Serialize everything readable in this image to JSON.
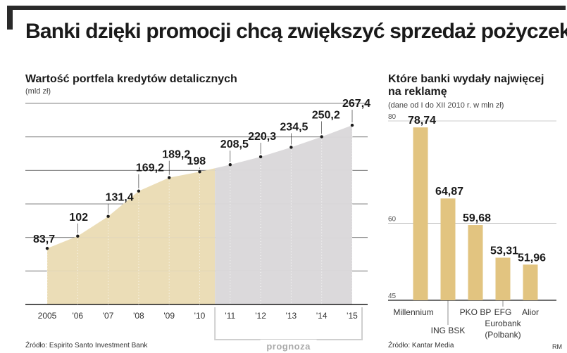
{
  "headline": "Banki dzięki promocji chcą zwiększyć sprzedaż pożyczek",
  "colors": {
    "area_actual": "#e9d9af",
    "area_forecast": "#d8d6d8",
    "bar": "#e2c480",
    "grid": "#333333",
    "dot": "#1a1a1a"
  },
  "chart_data": [
    {
      "type": "area",
      "title": "Wartość portfela kredytów detalicznych",
      "subtitle": "(mld zł)",
      "categories": [
        "2005",
        "'06",
        "'07",
        "'08",
        "'09",
        "'10",
        "'11",
        "'12",
        "'13",
        "'14",
        "'15"
      ],
      "values": [
        83.7,
        102,
        131.4,
        169.2,
        189.2,
        198,
        208.5,
        220.3,
        234.5,
        250.2,
        267.4
      ],
      "value_labels": [
        "83,7",
        "102",
        "131,4",
        "169,2",
        "189,2",
        "198",
        "208,5",
        "220,3",
        "234,5",
        "250,2",
        "267,4"
      ],
      "forecast_from": "'11",
      "forecast_label": "prognoza",
      "ylim": [
        0,
        300
      ],
      "source": "Źródło: Espirito Santo Investment Bank"
    },
    {
      "type": "bar",
      "title": "Które banki wydały najwięcej na reklamę",
      "subtitle": "(dane od I do XII 2010 r. w mln zł)",
      "categories": [
        "Millennium",
        "ING BSK",
        "PKO BP",
        "EFG Eurobank (Polbank)",
        "Alior"
      ],
      "category_lines": [
        [
          "Millennium"
        ],
        [
          "ING BSK"
        ],
        [
          "PKO BP"
        ],
        [
          "EFG",
          "Eurobank",
          "(Polbank)"
        ],
        [
          "Alior"
        ]
      ],
      "values": [
        78.74,
        64.87,
        59.68,
        53.31,
        51.96
      ],
      "value_labels": [
        "78,74",
        "64,87",
        "59,68",
        "53,31",
        "51,96"
      ],
      "yticks": [
        45,
        60,
        80
      ],
      "ylim": [
        45,
        80
      ],
      "source": "Źródło: Kantar Media"
    }
  ],
  "credit": "RM"
}
